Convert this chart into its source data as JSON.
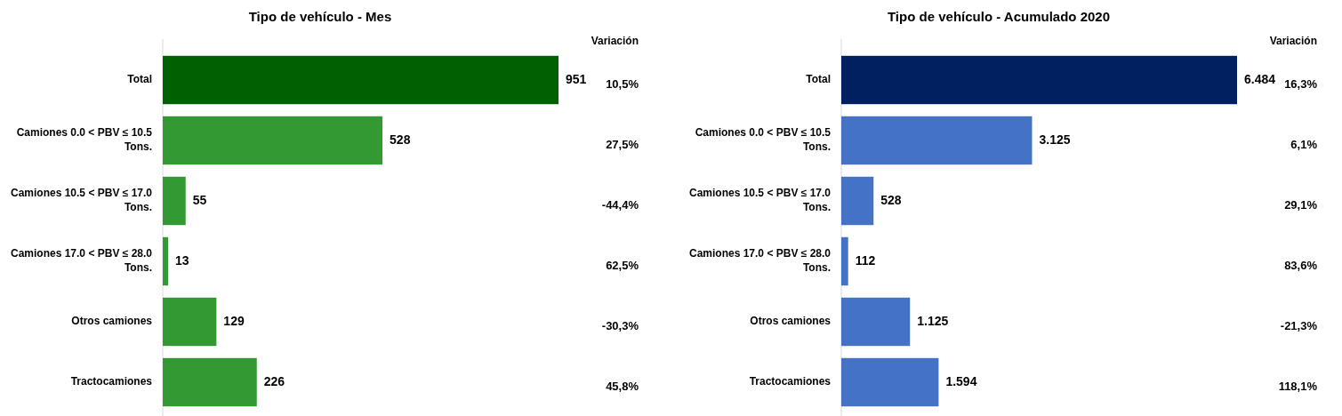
{
  "chart_data": [
    {
      "type": "bar",
      "orientation": "horizontal",
      "title": "Tipo de vehículo - Mes",
      "categories": [
        "Total",
        "Camiones 0.0 < PBV ≤ 10.5 Tons.",
        "Camiones 10.5 < PBV ≤ 17.0 Tons.",
        "Camiones 17.0 < PBV ≤ 28.0 Tons.",
        "Otros camiones",
        "Tractocamiones"
      ],
      "values": [
        951,
        528,
        55,
        13,
        129,
        226
      ],
      "colors": [
        "#006100",
        "#339933",
        "#339933",
        "#339933",
        "#339933",
        "#339933"
      ],
      "value_labels": [
        "951",
        "528",
        "55",
        "13",
        "129",
        "226"
      ],
      "annotations": [
        "Variación",
        "10,5%",
        "27,5%",
        "-44,4%",
        "62,5%",
        "-30,3%",
        "45,8%"
      ]
    },
    {
      "type": "bar",
      "orientation": "horizontal",
      "title": "Tipo de vehículo - Acumulado 2020",
      "categories": [
        "Total",
        "Camiones 0.0 < PBV ≤ 10.5 Tons.",
        "Camiones 10.5 < PBV ≤ 17.0 Tons.",
        "Camiones 17.0 < PBV ≤ 28.0 Tons.",
        "Otros camiones",
        "Tractocamiones"
      ],
      "values": [
        6484,
        3125,
        528,
        112,
        1125,
        1594
      ],
      "colors": [
        "#002060",
        "#4472c4",
        "#4472c4",
        "#4472c4",
        "#4472c4",
        "#4472c4"
      ],
      "value_labels": [
        "6.484",
        "3.125",
        "528",
        "112",
        "1.125",
        "1.594"
      ],
      "annotations": [
        "Variación",
        "16,3%",
        "6,1%",
        "29,1%",
        "83,6%",
        "-21,3%",
        "118,1%"
      ]
    }
  ]
}
